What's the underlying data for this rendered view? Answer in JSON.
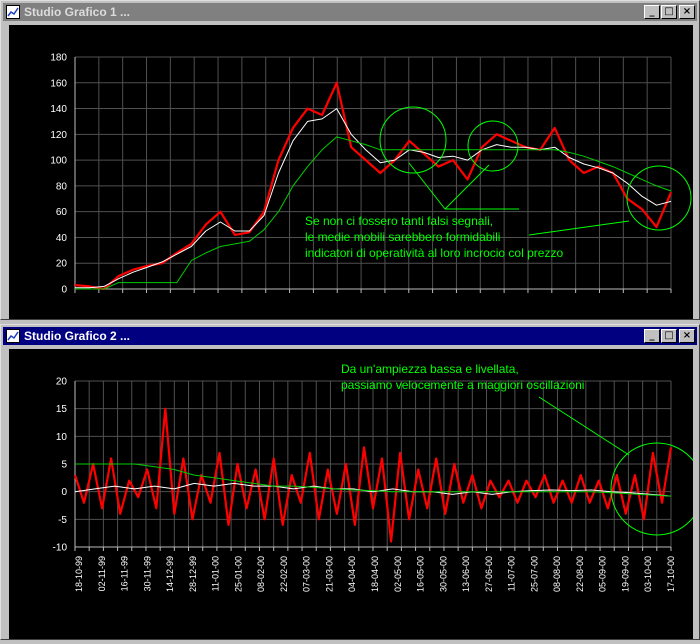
{
  "windows": [
    {
      "title": "Studio Grafico 1 ...",
      "buttons": {
        "minimize": "_",
        "maximize": "□",
        "close": "×"
      },
      "annotation": [
        "Se non ci fossero tanti falsi segnali,",
        "le medie mobili sarebbero formidabili",
        "indicatori di operatività al loro incrocio col prezzo"
      ],
      "colors": {
        "price": "#ff0000",
        "ma_short": "#ffffff",
        "ma_long": "#00cc00",
        "annotation": "#00ff00",
        "grid": "#505050",
        "axis_text": "#ffffff"
      }
    },
    {
      "title": "Studio Grafico 2 ...",
      "buttons": {
        "minimize": "_",
        "maximize": "□",
        "close": "×"
      },
      "annotation": [
        "Da un'ampiezza bassa e livellata,",
        "passiamo velocemente a maggiori oscillazioni"
      ],
      "colors": {
        "price": "#ff0000",
        "ma_short": "#ffffff",
        "ma_long": "#00cc00",
        "annotation": "#00ff00",
        "grid": "#505050",
        "axis_text": "#ffffff"
      }
    }
  ],
  "chart_data": [
    {
      "type": "line",
      "title": "",
      "ylim": [
        0,
        180
      ],
      "yticks": [
        0,
        20,
        40,
        60,
        80,
        100,
        120,
        140,
        160,
        180
      ],
      "grid": true,
      "x_points": 26,
      "series": [
        {
          "values": [
            3,
            2,
            0,
            10,
            15,
            18,
            20,
            28,
            35,
            50,
            60,
            42,
            44,
            60,
            100,
            125,
            140,
            135,
            160,
            110,
            100,
            90,
            100,
            115,
            105,
            95,
            100,
            85,
            110,
            120,
            115,
            110,
            108,
            125,
            100,
            90,
            95,
            90,
            70,
            62,
            48,
            75
          ]
        },
        {
          "values": [
            1,
            1,
            2,
            8,
            13,
            17,
            21,
            27,
            33,
            45,
            52,
            45,
            45,
            57,
            90,
            115,
            130,
            132,
            140,
            120,
            108,
            98,
            100,
            108,
            106,
            102,
            103,
            100,
            108,
            112,
            110,
            110,
            108,
            110,
            102,
            97,
            94,
            90,
            82,
            72,
            65,
            68
          ]
        },
        {
          "values": [
            0,
            0,
            0,
            5,
            5,
            5,
            5,
            5,
            22,
            28,
            33,
            35,
            37,
            46,
            60,
            80,
            95,
            108,
            118,
            115,
            112,
            108,
            108,
            108,
            108,
            108,
            108,
            108,
            108,
            108,
            108,
            108,
            108,
            108,
            106,
            103,
            99,
            95,
            90,
            85,
            80,
            76
          ]
        }
      ]
    },
    {
      "type": "line",
      "title": "",
      "ylim": [
        -10,
        20
      ],
      "yticks": [
        -10,
        -5,
        0,
        5,
        10,
        15,
        20
      ],
      "grid": true,
      "x_tick_labels": [
        "18-10-99",
        "02-11-99",
        "16-11-99",
        "30-11-99",
        "14-12-99",
        "28-12-99",
        "11-01-00",
        "25-01-00",
        "08-02-00",
        "22-02-00",
        "07-03-00",
        "21-03-00",
        "04-04-00",
        "18-04-00",
        "02-05-00",
        "16-05-00",
        "30-05-00",
        "13-06-00",
        "27-06-00",
        "11-07-00",
        "25-07-00",
        "08-08-00",
        "22-08-00",
        "05-09-00",
        "19-09-00",
        "03-10-00",
        "17-10-00"
      ],
      "series": [
        {
          "values": [
            3,
            -2,
            5,
            -3,
            6,
            -4,
            2,
            -1,
            4,
            -3,
            15,
            -4,
            6,
            -5,
            3,
            -2,
            7,
            -6,
            5,
            -3,
            4,
            -5,
            6,
            -6,
            3,
            -2,
            7,
            -5,
            4,
            -4,
            5,
            -6,
            8,
            -3,
            6,
            -9,
            7,
            -5,
            4,
            -3,
            6,
            -4,
            5,
            -2,
            3,
            -3,
            2,
            -1,
            2,
            -2,
            2,
            -1,
            3,
            -2,
            2,
            -2,
            3,
            -2,
            2,
            -3,
            3,
            -4,
            3,
            -5,
            7,
            -2,
            8
          ]
        },
        {
          "values": [
            0,
            0.5,
            1,
            0.5,
            1,
            0.5,
            1.5,
            1,
            1.5,
            1,
            1,
            0.5,
            1,
            0.5,
            0.5,
            0,
            0.5,
            0,
            0,
            -0.5,
            0,
            -0.5,
            0,
            0.2,
            0.3,
            0.2,
            0.3,
            0,
            -0.2,
            -0.5,
            -0.8
          ]
        },
        {
          "values": [
            5,
            5,
            5,
            5,
            4.5,
            4,
            3,
            2.5,
            2,
            1.5,
            1,
            1,
            0.8,
            0.5,
            0.3,
            0.2,
            0,
            0,
            0,
            0,
            0,
            0,
            0,
            0,
            0,
            0,
            0,
            -0.2,
            -0.4,
            -0.6,
            -0.8
          ]
        }
      ]
    }
  ]
}
